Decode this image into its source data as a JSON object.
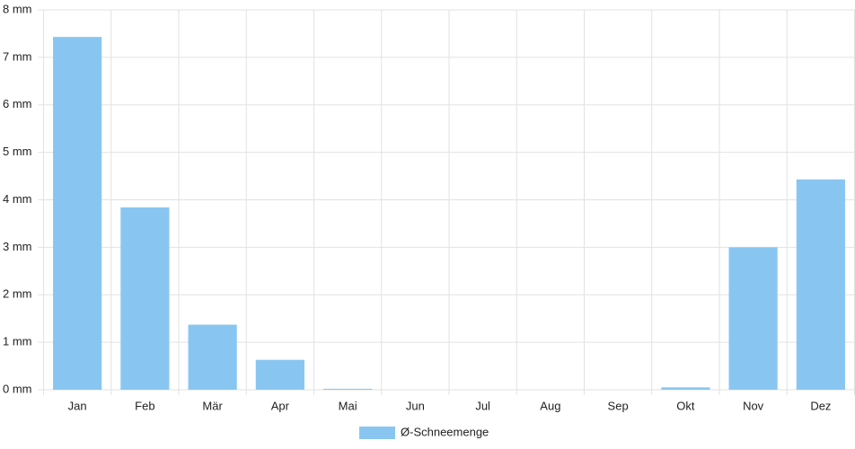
{
  "chart_data": {
    "type": "bar",
    "categories": [
      "Jan",
      "Feb",
      "Mär",
      "Apr",
      "Mai",
      "Jun",
      "Jul",
      "Aug",
      "Sep",
      "Okt",
      "Nov",
      "Dez"
    ],
    "series": [
      {
        "name": "Ø-Schneemenge",
        "color": "#88c6f1",
        "values": [
          7.43,
          3.84,
          1.37,
          0.63,
          0.02,
          0,
          0,
          0,
          0,
          0.05,
          3.0,
          4.43
        ]
      }
    ],
    "ylim": [
      0,
      8
    ],
    "yticks": [
      {
        "value": 0,
        "label": "0 mm"
      },
      {
        "value": 1,
        "label": "1 mm"
      },
      {
        "value": 2,
        "label": "2 mm"
      },
      {
        "value": 3,
        "label": "3 mm"
      },
      {
        "value": 4,
        "label": "4 mm"
      },
      {
        "value": 5,
        "label": "5 mm"
      },
      {
        "value": 6,
        "label": "6 mm"
      },
      {
        "value": 7,
        "label": "7 mm"
      },
      {
        "value": 8,
        "label": "8 mm"
      }
    ],
    "grid": true,
    "legend": "bottom"
  }
}
